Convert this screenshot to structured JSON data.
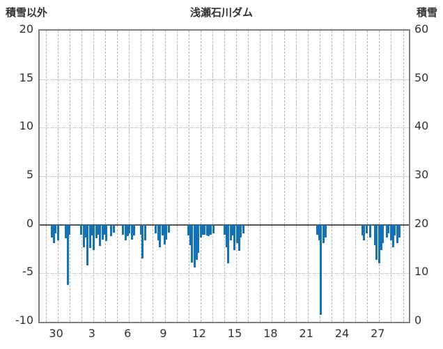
{
  "header": {
    "left_label": "積雪以外",
    "title": "浅瀬石川ダム",
    "right_label": "積雪"
  },
  "colors": {
    "bar": "#1372b8",
    "grid": "#b4b4b4",
    "zero_line": "#555555",
    "border": "#7f7f7f",
    "text": "#333333"
  },
  "chart_data": {
    "type": "bar",
    "title": "浅瀬石川ダム",
    "left_axis": {
      "label": "積雪以外",
      "min": -10,
      "max": 20,
      "ticks": [
        20,
        15,
        10,
        5,
        0,
        -5,
        -10
      ]
    },
    "right_axis": {
      "label": "積雪",
      "min": 0,
      "max": 60,
      "ticks": [
        60,
        50,
        40,
        30,
        20,
        10,
        0
      ]
    },
    "x_axis": {
      "days": 31,
      "tick_labels": [
        "30",
        "3",
        "6",
        "9",
        "12",
        "15",
        "18",
        "21",
        "24",
        "27"
      ],
      "tick_day_indices": [
        1,
        4,
        7,
        10,
        13,
        16,
        19,
        22,
        25,
        28
      ]
    },
    "grid": true,
    "legend": "none",
    "bars": [
      {
        "x": 0.032,
        "v": -1.3
      },
      {
        "x": 0.038,
        "v": -1.9
      },
      {
        "x": 0.043,
        "v": -0.9
      },
      {
        "x": 0.049,
        "v": -1.6
      },
      {
        "x": 0.07,
        "v": -1.4
      },
      {
        "x": 0.0755,
        "v": -6.2
      },
      {
        "x": 0.081,
        "v": -1.0
      },
      {
        "x": 0.113,
        "v": -1.0
      },
      {
        "x": 0.119,
        "v": -2.3
      },
      {
        "x": 0.125,
        "v": -1.3
      },
      {
        "x": 0.13,
        "v": -4.2
      },
      {
        "x": 0.136,
        "v": -2.4
      },
      {
        "x": 0.142,
        "v": -1.1
      },
      {
        "x": 0.147,
        "v": -2.6
      },
      {
        "x": 0.153,
        "v": -1.4
      },
      {
        "x": 0.158,
        "v": -1.0
      },
      {
        "x": 0.164,
        "v": -2.2
      },
      {
        "x": 0.17,
        "v": -1.5
      },
      {
        "x": 0.175,
        "v": -1.0
      },
      {
        "x": 0.181,
        "v": -1.7
      },
      {
        "x": 0.194,
        "v": -1.2
      },
      {
        "x": 0.2,
        "v": -0.8
      },
      {
        "x": 0.226,
        "v": -1.0
      },
      {
        "x": 0.232,
        "v": -1.6
      },
      {
        "x": 0.238,
        "v": -1.2
      },
      {
        "x": 0.243,
        "v": -0.9
      },
      {
        "x": 0.249,
        "v": -1.5
      },
      {
        "x": 0.255,
        "v": -1.1
      },
      {
        "x": 0.274,
        "v": -1.0
      },
      {
        "x": 0.279,
        "v": -3.5
      },
      {
        "x": 0.285,
        "v": -1.6
      },
      {
        "x": 0.315,
        "v": -0.9
      },
      {
        "x": 0.321,
        "v": -1.6
      },
      {
        "x": 0.326,
        "v": -2.3
      },
      {
        "x": 0.332,
        "v": -1.1
      },
      {
        "x": 0.338,
        "v": -2.0
      },
      {
        "x": 0.343,
        "v": -1.5
      },
      {
        "x": 0.349,
        "v": -0.8
      },
      {
        "x": 0.402,
        "v": -1.1
      },
      {
        "x": 0.408,
        "v": -2.1
      },
      {
        "x": 0.413,
        "v": -3.9
      },
      {
        "x": 0.419,
        "v": -4.4
      },
      {
        "x": 0.425,
        "v": -3.6
      },
      {
        "x": 0.43,
        "v": -2.9
      },
      {
        "x": 0.436,
        "v": -1.3
      },
      {
        "x": 0.442,
        "v": -1.0
      },
      {
        "x": 0.447,
        "v": -1.0
      },
      {
        "x": 0.453,
        "v": -1.1
      },
      {
        "x": 0.458,
        "v": -1.2
      },
      {
        "x": 0.464,
        "v": -1.0
      },
      {
        "x": 0.47,
        "v": -0.9
      },
      {
        "x": 0.5,
        "v": -1.0
      },
      {
        "x": 0.506,
        "v": -2.3
      },
      {
        "x": 0.511,
        "v": -4.0
      },
      {
        "x": 0.517,
        "v": -1.6
      },
      {
        "x": 0.523,
        "v": -1.1
      },
      {
        "x": 0.528,
        "v": -2.6
      },
      {
        "x": 0.534,
        "v": -1.9
      },
      {
        "x": 0.54,
        "v": -2.7
      },
      {
        "x": 0.545,
        "v": -1.3
      },
      {
        "x": 0.551,
        "v": -0.9
      },
      {
        "x": 0.751,
        "v": -1.0
      },
      {
        "x": 0.757,
        "v": -1.6
      },
      {
        "x": 0.762,
        "v": -9.3
      },
      {
        "x": 0.768,
        "v": -1.9
      },
      {
        "x": 0.774,
        "v": -1.3
      },
      {
        "x": 0.874,
        "v": -1.1
      },
      {
        "x": 0.879,
        "v": -1.6
      },
      {
        "x": 0.885,
        "v": -0.9
      },
      {
        "x": 0.896,
        "v": -1.3
      },
      {
        "x": 0.908,
        "v": -2.1
      },
      {
        "x": 0.913,
        "v": -3.6
      },
      {
        "x": 0.919,
        "v": -4.0
      },
      {
        "x": 0.925,
        "v": -2.6
      },
      {
        "x": 0.93,
        "v": -1.9
      },
      {
        "x": 0.94,
        "v": -1.3
      },
      {
        "x": 0.945,
        "v": -0.9
      },
      {
        "x": 0.951,
        "v": -1.6
      },
      {
        "x": 0.957,
        "v": -2.3
      },
      {
        "x": 0.962,
        "v": -1.1
      },
      {
        "x": 0.968,
        "v": -1.9
      },
      {
        "x": 0.974,
        "v": -1.3
      }
    ]
  }
}
